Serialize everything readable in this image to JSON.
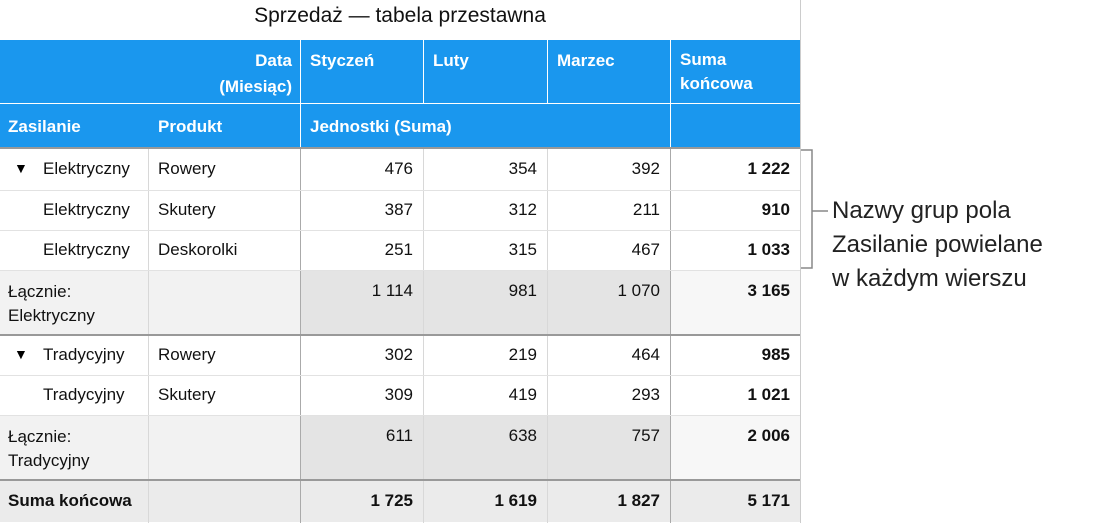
{
  "title": "Sprzedaż — tabela przestawna",
  "columns": {
    "corner": [
      "Data",
      "(Miesiąc)"
    ],
    "months": [
      "Styczeń",
      "Luty",
      "Marzec"
    ],
    "grand_total": [
      "Suma",
      "końcowa"
    ]
  },
  "subheader": {
    "power": "Zasilanie",
    "product": "Produkt",
    "measure": "Jednostki (Suma)"
  },
  "groups": [
    {
      "rows": [
        {
          "power": "Elektryczny",
          "product": "Rowery",
          "values": [
            "476",
            "354",
            "392"
          ],
          "total": "1 222",
          "disclosure": true
        },
        {
          "power": "Elektryczny",
          "product": "Skutery",
          "values": [
            "387",
            "312",
            "211"
          ],
          "total": "910",
          "disclosure": false
        },
        {
          "power": "Elektryczny",
          "product": "Deskorolki",
          "values": [
            "251",
            "315",
            "467"
          ],
          "total": "1 033",
          "disclosure": false
        }
      ],
      "subtotal": {
        "label": [
          "Łącznie:",
          "Elektryczny"
        ],
        "values": [
          "1 114",
          "981",
          "1 070"
        ],
        "total": "3 165"
      }
    },
    {
      "rows": [
        {
          "power": "Tradycyjny",
          "product": "Rowery",
          "values": [
            "302",
            "219",
            "464"
          ],
          "total": "985",
          "disclosure": true
        },
        {
          "power": "Tradycyjny",
          "product": "Skutery",
          "values": [
            "309",
            "419",
            "293"
          ],
          "total": "1 021",
          "disclosure": false
        }
      ],
      "subtotal": {
        "label": [
          "Łącznie:",
          "Tradycyjny"
        ],
        "values": [
          "611",
          "638",
          "757"
        ],
        "total": "2 006"
      }
    }
  ],
  "grand_total": {
    "label": "Suma końcowa",
    "values": [
      "1 725",
      "1 619",
      "1 827"
    ],
    "total": "5 171"
  },
  "callout": [
    "Nazwy grup pola",
    "Zasilanie powielane",
    "w każdym wierszu"
  ]
}
